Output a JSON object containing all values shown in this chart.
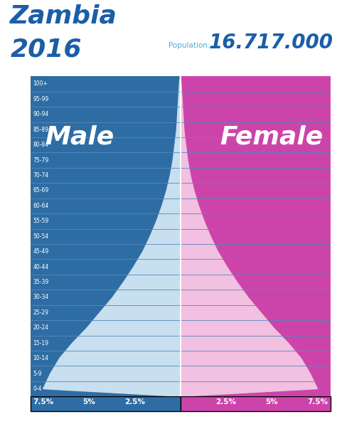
{
  "title": "Zambia",
  "year": "2016",
  "population_label": "Population:",
  "population_value": "16.717.000",
  "age_groups": [
    "100+",
    "95-99",
    "90-94",
    "85-89",
    "80-84",
    "75-79",
    "70-74",
    "65-69",
    "60-64",
    "55-59",
    "50-54",
    "45-49",
    "40-44",
    "35-39",
    "30-34",
    "25-29",
    "20-24",
    "15-19",
    "10-14",
    "5-9",
    "0-4"
  ],
  "male_pct": [
    0.05,
    0.1,
    0.15,
    0.2,
    0.3,
    0.4,
    0.55,
    0.75,
    1.0,
    1.3,
    1.65,
    2.05,
    2.55,
    3.1,
    3.7,
    4.4,
    5.1,
    5.9,
    6.6,
    7.1,
    7.5
  ],
  "female_pct": [
    0.05,
    0.1,
    0.15,
    0.2,
    0.3,
    0.4,
    0.55,
    0.75,
    1.0,
    1.3,
    1.65,
    2.05,
    2.55,
    3.1,
    3.7,
    4.4,
    5.1,
    5.9,
    6.6,
    7.1,
    7.5
  ],
  "male_color": "#2E6DA4",
  "female_color": "#CC44AA",
  "male_curve_color": "#C8DFF0",
  "female_curve_color": "#F2C0E0",
  "male_label": "Male",
  "female_label": "Female",
  "title_color": "#1A5EA8",
  "year_color": "#1A5EA8",
  "pop_value_color": "#1A5EA8",
  "pop_label_color": "#55AACC",
  "tick_positions": [
    -7.5,
    -5.0,
    -2.5,
    2.5,
    5.0,
    7.5
  ],
  "tick_labels": [
    "7.5%",
    "5%",
    "2.5%",
    "2.5%",
    "5%",
    "7.5%"
  ],
  "xlim": 8.2,
  "bg_color": "#FFFFFF",
  "row_line_color": "#5588BB",
  "age_label_color": "#FFFFFF",
  "grid_line_color": "#AACCDD"
}
